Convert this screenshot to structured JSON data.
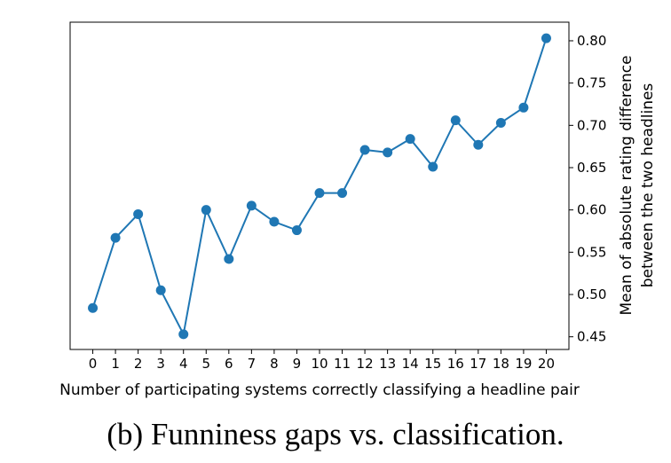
{
  "chart_data": {
    "type": "line",
    "x": [
      0,
      1,
      2,
      3,
      4,
      5,
      6,
      7,
      8,
      9,
      10,
      11,
      12,
      13,
      14,
      15,
      16,
      17,
      18,
      19,
      20
    ],
    "series": [
      {
        "values": [
          0.484,
          0.567,
          0.595,
          0.505,
          0.453,
          0.6,
          0.542,
          0.605,
          0.586,
          0.576,
          0.62,
          0.62,
          0.671,
          0.668,
          0.684,
          0.651,
          0.706,
          0.677,
          0.703,
          0.721,
          0.803
        ],
        "color": "#1f77b4"
      }
    ],
    "xlabel": "Number of participating systems correctly classifying a headline pair",
    "ylabel_line1": "Mean of absolute rating difference",
    "ylabel_line2": "between the two headlines",
    "xticks": [
      "0",
      "1",
      "2",
      "3",
      "4",
      "5",
      "6",
      "7",
      "8",
      "9",
      "10",
      "11",
      "12",
      "13",
      "14",
      "15",
      "16",
      "17",
      "18",
      "19",
      "20"
    ],
    "yticks": [
      0.45,
      0.5,
      0.55,
      0.6,
      0.65,
      0.7,
      0.75,
      0.8
    ],
    "ytick_labels": [
      "0.45",
      "0.50",
      "0.55",
      "0.60",
      "0.65",
      "0.70",
      "0.75",
      "0.80"
    ],
    "xlim": [
      -1,
      21
    ],
    "ylim": [
      0.435,
      0.822
    ],
    "y_axis_side": "right",
    "grid": false
  },
  "caption": "(b) Funniness gaps vs. classification."
}
